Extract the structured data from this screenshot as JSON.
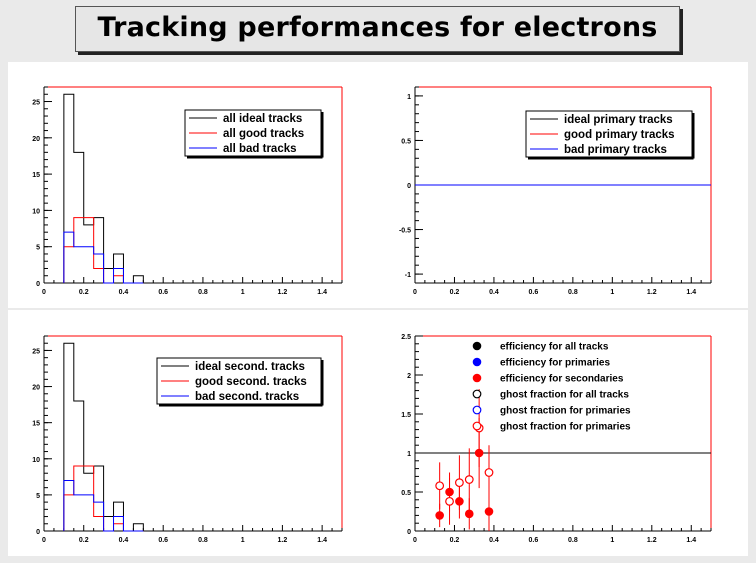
{
  "page_title": "Tracking performances for electrons",
  "chart_data": [
    {
      "type": "histogram",
      "xlim": [
        0,
        1.5
      ],
      "ylim": [
        0,
        27
      ],
      "xticks": [
        "0",
        "0.2",
        "0.4",
        "0.6",
        "0.8",
        "1",
        "1.2",
        "1.4"
      ],
      "yticks": [
        "0",
        "5",
        "10",
        "15",
        "20",
        "25"
      ],
      "bin_edges": [
        0.1,
        0.15,
        0.2,
        0.25,
        0.3,
        0.35,
        0.4,
        0.45,
        0.5
      ],
      "legend_position": "top-right",
      "series": [
        {
          "name": "all ideal tracks",
          "color": "#000000",
          "values": [
            26,
            18,
            8,
            9,
            2,
            4,
            0,
            1
          ]
        },
        {
          "name": "all good tracks",
          "color": "#ff0000",
          "values": [
            5,
            9,
            9,
            2,
            0,
            1,
            0,
            0
          ]
        },
        {
          "name": "all bad tracks",
          "color": "#0000ff",
          "values": [
            7,
            5,
            5,
            4,
            0,
            2,
            0,
            0
          ]
        }
      ]
    },
    {
      "type": "histogram",
      "xlim": [
        0,
        1.5
      ],
      "ylim": [
        -1.1,
        1.1
      ],
      "xticks": [
        "0",
        "0.2",
        "0.4",
        "0.6",
        "0.8",
        "1",
        "1.2",
        "1.4"
      ],
      "yticks": [
        "-1",
        "-0.5",
        "0",
        "0.5",
        "1"
      ],
      "yticks_values": [
        -1,
        -0.5,
        0,
        0.5,
        1
      ],
      "legend_position": "top-right",
      "series": [
        {
          "name": "ideal primary tracks",
          "color": "#000000",
          "values": [
            0
          ]
        },
        {
          "name": "good primary tracks",
          "color": "#ff0000",
          "values": [
            0
          ]
        },
        {
          "name": "bad primary tracks",
          "color": "#0000ff",
          "values": [
            0
          ]
        }
      ]
    },
    {
      "type": "histogram",
      "xlim": [
        0,
        1.5
      ],
      "ylim": [
        0,
        27
      ],
      "xticks": [
        "0",
        "0.2",
        "0.4",
        "0.6",
        "0.8",
        "1",
        "1.2",
        "1.4"
      ],
      "yticks": [
        "0",
        "5",
        "10",
        "15",
        "20",
        "25"
      ],
      "bin_edges": [
        0.1,
        0.15,
        0.2,
        0.25,
        0.3,
        0.35,
        0.4,
        0.45,
        0.5
      ],
      "legend_position": "top-right",
      "series": [
        {
          "name": "ideal second. tracks",
          "color": "#000000",
          "values": [
            26,
            18,
            8,
            9,
            2,
            4,
            0,
            1
          ]
        },
        {
          "name": "good second. tracks",
          "color": "#ff0000",
          "values": [
            5,
            9,
            9,
            2,
            0,
            1,
            0,
            0
          ]
        },
        {
          "name": "bad second. tracks",
          "color": "#0000ff",
          "values": [
            7,
            5,
            5,
            4,
            0,
            2,
            0,
            0
          ]
        }
      ]
    },
    {
      "type": "scatter",
      "xlim": [
        0,
        1.5
      ],
      "ylim": [
        0,
        2.5
      ],
      "xticks": [
        "0",
        "0.2",
        "0.4",
        "0.6",
        "0.8",
        "1",
        "1.2",
        "1.4"
      ],
      "yticks": [
        "0",
        "0.5",
        "1",
        "1.5",
        "2",
        "2.5"
      ],
      "reference_line_y": 1,
      "legend_position": "top-right",
      "series": [
        {
          "name": "efficiency for all tracks",
          "color": "#000000",
          "marker": "filled",
          "points": []
        },
        {
          "name": "efficiency for primaries",
          "color": "#0000ff",
          "marker": "filled",
          "points": []
        },
        {
          "name": "efficiency for secondaries",
          "color": "#ff0000",
          "marker": "filled",
          "points": [
            {
              "x": 0.125,
              "y": 0.2,
              "err": 0.15
            },
            {
              "x": 0.175,
              "y": 0.5,
              "err": 0.25
            },
            {
              "x": 0.225,
              "y": 0.38,
              "err": 0.22
            },
            {
              "x": 0.275,
              "y": 0.22,
              "err": 0.2
            },
            {
              "x": 0.325,
              "y": 1.0,
              "err": 0.45
            },
            {
              "x": 0.375,
              "y": 0.25,
              "err": 0.25
            }
          ]
        },
        {
          "name": "ghost fraction for all tracks",
          "color": "#000000",
          "marker": "open",
          "points": []
        },
        {
          "name": "ghost fraction for primaries",
          "color": "#0000ff",
          "marker": "open",
          "points": []
        },
        {
          "name": "ghost fraction for primaries",
          "color": "#ff0000",
          "marker": "open",
          "points": [
            {
              "x": 0.125,
              "y": 0.58,
              "err": 0.3
            },
            {
              "x": 0.175,
              "y": 0.38,
              "err": 0.3
            },
            {
              "x": 0.225,
              "y": 0.62,
              "err": 0.35
            },
            {
              "x": 0.275,
              "y": 0.66,
              "err": 0.4
            },
            {
              "x": 0.325,
              "y": 1.32,
              "err": 0.5
            },
            {
              "x": 0.375,
              "y": 0.75,
              "err": 0.35
            }
          ]
        }
      ]
    }
  ]
}
